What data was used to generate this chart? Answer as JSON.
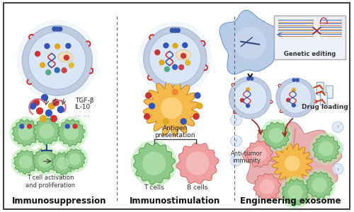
{
  "bg_color": "#ffffff",
  "border_color": "#444444",
  "panel_divider_color": "#666666",
  "panel_labels": [
    "Immunosuppression",
    "Immunostimulation",
    "Engineering exosome"
  ],
  "panel_label_fontsize": 8.5,
  "tgf_label": "TGF-β",
  "il_label": "IL-10",
  "dots_label": "... ...",
  "antigen_label": "Antigen\npresentation",
  "tcell_label": "T cells",
  "bcell_label": "B cells",
  "tcell_activation_label": "T cell activation\nand proliferation",
  "genetic_label": "Genetic editing",
  "drug_label": "Drug loading",
  "antitumor_label": "Anti-tumor\nimmunity",
  "exosome_fill": "#dae6f5",
  "exosome_ring": "#aabbdd",
  "exosome_outer_ring": "#c0cce0",
  "exo_dna_red": "#cc3333",
  "exo_dna_blue": "#3355bb",
  "cell_green": "#8ec98a",
  "cell_green_edge": "#5a9a55",
  "cell_green_glow": "#b8e8b0",
  "cell_pink": "#f0a0a0",
  "cell_pink_edge": "#cc6666",
  "cell_blue_fill": "#b8cce8",
  "cell_blue_edge": "#7799cc",
  "dendritic_fill": "#f5b84a",
  "dendritic_edge": "#cc8820",
  "dendritic_inner": "#fdd888",
  "dot_red": "#cc3333",
  "dot_blue": "#3355bb",
  "dot_yellow": "#ddaa22",
  "dot_orange": "#ee8833",
  "dot_purple": "#996699",
  "dot_green": "#55aa55",
  "tumor_fill": "#e8b0b0",
  "tumor_edge": "#cc8888",
  "tumor_inner": "#f0c878",
  "arrow_dark": "#333333",
  "arrow_red": "#993322",
  "pink_curl": "#e07080",
  "receptor_red": "#cc3333",
  "receptor_color": "#cc3333",
  "box_fill": "#eef2f8",
  "box_edge": "#aaaaaa"
}
